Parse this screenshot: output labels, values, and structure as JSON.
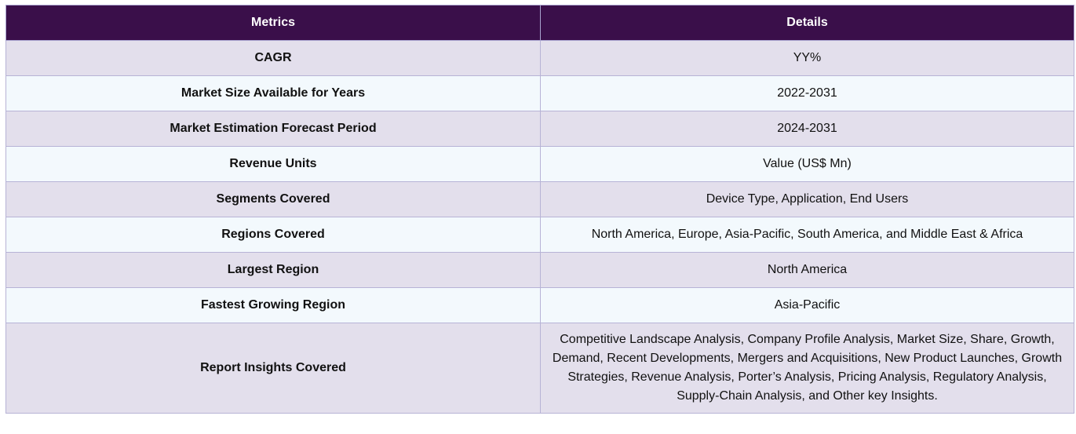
{
  "table": {
    "headers": [
      "Metrics",
      "Details"
    ],
    "rows": [
      {
        "metric": "CAGR",
        "detail": "YY%"
      },
      {
        "metric": "Market Size Available for Years",
        "detail": "2022-2031"
      },
      {
        "metric": "Market Estimation Forecast Period",
        "detail": "2024-2031"
      },
      {
        "metric": "Revenue Units",
        "detail": "Value (US$ Mn)"
      },
      {
        "metric": "Segments Covered",
        "detail": "Device Type, Application, End Users"
      },
      {
        "metric": "Regions Covered",
        "detail": "North America, Europe, Asia-Pacific, South America, and Middle East & Africa"
      },
      {
        "metric": "Largest Region",
        "detail": "North America"
      },
      {
        "metric": "Fastest Growing Region",
        "detail": "Asia-Pacific"
      },
      {
        "metric": "Report Insights Covered",
        "detail": "Competitive Landscape Analysis, Company Profile Analysis, Market Size, Share, Growth, Demand, Recent Developments, Mergers and Acquisitions, New Product Launches, Growth Strategies, Revenue Analysis, Porter’s Analysis, Pricing Analysis, Regulatory Analysis, Supply-Chain Analysis, and Other key Insights."
      }
    ],
    "colors": {
      "header_bg": "#3a0f4a",
      "row_odd_bg": "#e3dfec",
      "row_even_bg": "#f3f9fd",
      "border": "#b7b3d6"
    }
  }
}
